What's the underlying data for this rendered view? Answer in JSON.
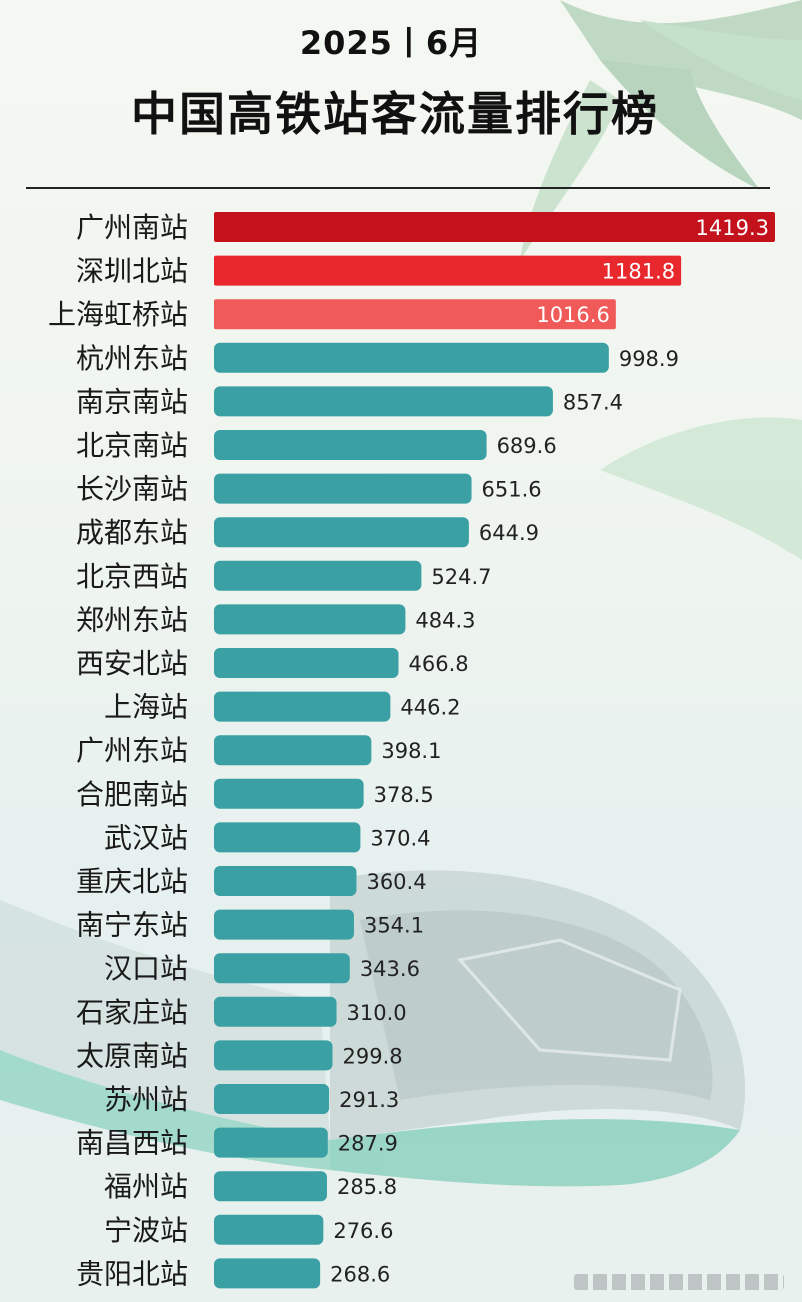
{
  "header": {
    "subtitle": "2025丨6月",
    "title": "中国高铁站客流量排行榜"
  },
  "colors": {
    "top1": "#c4121c",
    "top2": "#e8282d",
    "top3": "#f05a58",
    "default": "#3aa0a3",
    "value_text_inside": "#ffffff",
    "value_text_outside": "#222222",
    "accent_leaf": "#8fbf9a"
  },
  "chart_data": {
    "type": "bar",
    "orientation": "horizontal",
    "title": "中国高铁站客流量排行榜",
    "categories": [
      "广州南站",
      "深圳北站",
      "上海虹桥站",
      "杭州东站",
      "南京南站",
      "北京南站",
      "长沙南站",
      "成都东站",
      "北京西站",
      "郑州东站",
      "西安北站",
      "上海站",
      "广州东站",
      "合肥南站",
      "武汉站",
      "重庆北站",
      "南宁东站",
      "汉口站",
      "石家庄站",
      "太原南站",
      "苏州站",
      "南昌西站",
      "福州站",
      "宁波站",
      "贵阳北站"
    ],
    "values": [
      1419.3,
      1181.8,
      1016.6,
      998.9,
      857.4,
      689.6,
      651.6,
      644.9,
      524.7,
      484.3,
      466.8,
      446.2,
      398.1,
      378.5,
      370.4,
      360.4,
      354.1,
      343.6,
      310.0,
      299.8,
      291.3,
      287.9,
      285.8,
      276.6,
      268.6
    ],
    "value_labels": [
      "1419.3",
      "1181.8",
      "1016.6",
      "998.9",
      "857.4",
      "689.6",
      "651.6",
      "644.9",
      "524.7",
      "484.3",
      "466.8",
      "446.2",
      "398.1",
      "378.5",
      "370.4",
      "360.4",
      "354.1",
      "343.6",
      "310.0",
      "299.8",
      "291.3",
      "287.9",
      "285.8",
      "276.6",
      "268.6"
    ],
    "xlim": [
      0,
      1450
    ],
    "grid": false,
    "legend": "none"
  }
}
